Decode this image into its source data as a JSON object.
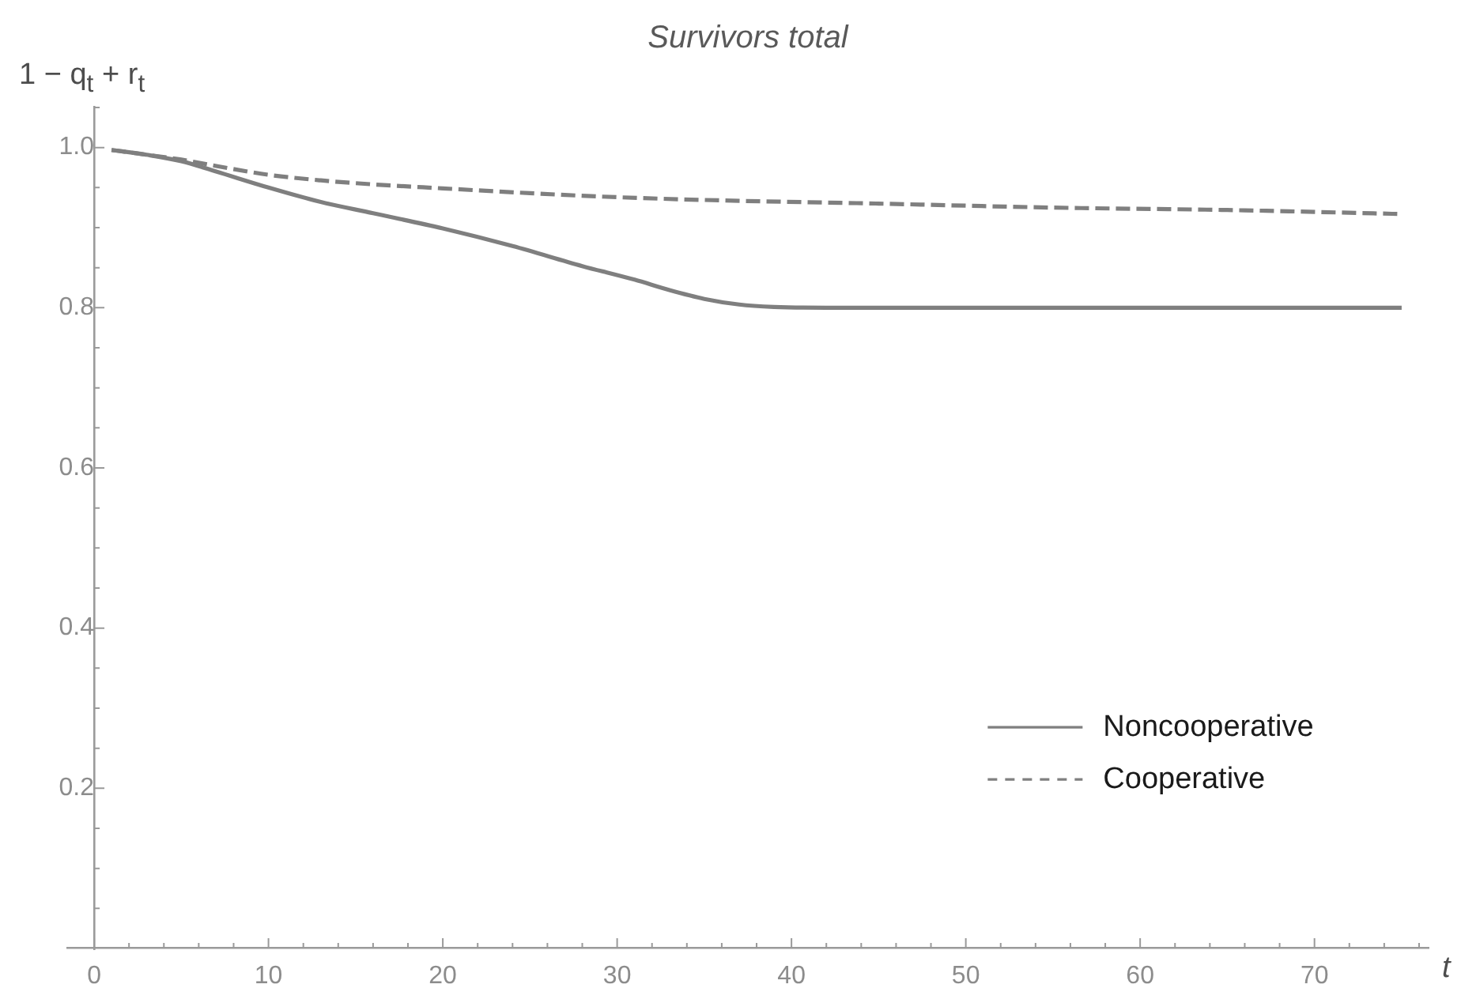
{
  "chart_data": {
    "type": "line",
    "title": "Survivors total",
    "xlabel": "t",
    "ylabel": "1 − q$_{t}$ + r$_{t}$",
    "xlim": [
      -1.5,
      76.5
    ],
    "ylim": [
      0,
      1.05
    ],
    "xticks": [
      0,
      {
        "value": 2,
        "label": null
      },
      {
        "value": 4,
        "label": null
      },
      {
        "value": 6,
        "label": null
      },
      {
        "value": 8,
        "label": null
      },
      10,
      {
        "value": 12,
        "label": null
      },
      {
        "value": 14,
        "label": null
      },
      {
        "value": 16,
        "label": null
      },
      {
        "value": 18,
        "label": null
      },
      20,
      {
        "value": 22,
        "label": null
      },
      {
        "value": 24,
        "label": null
      },
      {
        "value": 26,
        "label": null
      },
      {
        "value": 28,
        "label": null
      },
      30,
      {
        "value": 32,
        "label": null
      },
      {
        "value": 34,
        "label": null
      },
      {
        "value": 36,
        "label": null
      },
      {
        "value": 38,
        "label": null
      },
      40,
      {
        "value": 42,
        "label": null
      },
      {
        "value": 44,
        "label": null
      },
      {
        "value": 46,
        "label": null
      },
      {
        "value": 48,
        "label": null
      },
      50,
      {
        "value": 52,
        "label": null
      },
      {
        "value": 54,
        "label": null
      },
      {
        "value": 56,
        "label": null
      },
      {
        "value": 58,
        "label": null
      },
      60,
      {
        "value": 62,
        "label": null
      },
      {
        "value": 64,
        "label": null
      },
      {
        "value": 66,
        "label": null
      },
      {
        "value": 68,
        "label": null
      },
      70,
      {
        "value": 72,
        "label": null
      },
      {
        "value": 74,
        "label": null
      },
      {
        "value": 76,
        "label": null
      }
    ],
    "yticks": [
      {
        "value": 0.05,
        "label": null
      },
      {
        "value": 0.1,
        "label": null
      },
      {
        "value": 0.15,
        "label": null
      },
      0.2,
      {
        "value": 0.25,
        "label": null
      },
      {
        "value": 0.3,
        "label": null
      },
      {
        "value": 0.35,
        "label": null
      },
      0.4,
      {
        "value": 0.45,
        "label": null
      },
      {
        "value": 0.5,
        "label": null
      },
      {
        "value": 0.55,
        "label": null
      },
      0.6,
      {
        "value": 0.65,
        "label": null
      },
      {
        "value": 0.7,
        "label": null
      },
      {
        "value": 0.75,
        "label": null
      },
      0.8,
      {
        "value": 0.85,
        "label": null
      },
      {
        "value": 0.9,
        "label": null
      },
      {
        "value": 0.95,
        "label": null
      },
      {
        "value": 1,
        "label": "1.0"
      },
      {
        "value": 1.05,
        "label": null
      }
    ],
    "series": [
      {
        "name": "Noncooperative",
        "color": "#7f7f7f",
        "line_style": "solid",
        "x": [
          1,
          3,
          5,
          7,
          10,
          13,
          16,
          20,
          24,
          28,
          31,
          33,
          35,
          37,
          39,
          42,
          50,
          60,
          75
        ],
        "values": [
          0.997,
          0.991,
          0.983,
          0.97,
          0.95,
          0.932,
          0.918,
          0.899,
          0.877,
          0.852,
          0.835,
          0.822,
          0.811,
          0.804,
          0.801,
          0.8,
          0.8,
          0.8,
          0.8
        ]
      },
      {
        "name": "Cooperative",
        "color": "#7f7f7f",
        "line_style": "dashed",
        "x": [
          1,
          3,
          5,
          7,
          10,
          13,
          16,
          20,
          25,
          30,
          36,
          45,
          55,
          65,
          75
        ],
        "values": [
          0.997,
          0.991,
          0.985,
          0.977,
          0.966,
          0.959,
          0.954,
          0.949,
          0.943,
          0.938,
          0.934,
          0.93,
          0.925,
          0.922,
          0.917
        ]
      }
    ],
    "legend": "bottom right",
    "grid": false,
    "marker": "none"
  }
}
